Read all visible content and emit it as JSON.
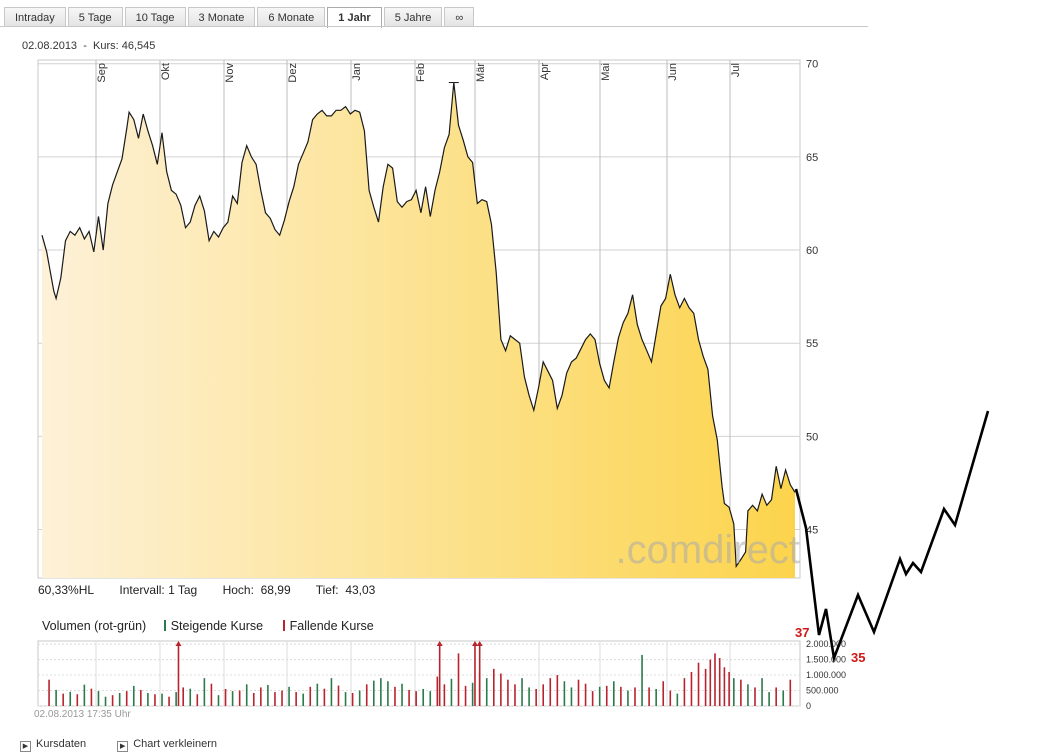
{
  "tabs": [
    "Intraday",
    "5 Tage",
    "10 Tage",
    "3 Monate",
    "6 Monate",
    "1 Jahr",
    "5 Jahre",
    "∞"
  ],
  "active_tab": 5,
  "header": {
    "date": "02.08.2013",
    "sep": "-",
    "kurs_label": "Kurs:",
    "kurs_value": "46,545"
  },
  "stats": {
    "hl": "60,33%HL",
    "intervall": "Intervall: 1 Tag",
    "hoch_label": "Hoch:",
    "hoch": "68,99",
    "tief_label": "Tief:",
    "tief": "43,03"
  },
  "volume_legend": {
    "title": "Volumen (rot-grün)",
    "up": "Steigende Kurse",
    "down": "Fallende Kurse"
  },
  "timestamp": "02.08.2013 17:35 Uhr",
  "bottom_links": [
    "Kursdaten",
    "Chart verkleinern"
  ],
  "watermark": ".comdirect",
  "annotations": {
    "high": "37",
    "low": "35"
  },
  "colors": {
    "up": "#2b7a4b",
    "down": "#b8232e",
    "line": "#1a1a1a",
    "fill_light": "#fdf1d8",
    "fill_dark": "#fcd44c",
    "drawn": "#000000",
    "annotation": "#d01818"
  },
  "chart_data": {
    "type": "area",
    "price": {
      "months": [
        "Sep",
        "Okt",
        "Nov",
        "Dez",
        "Jan",
        "Feb",
        "Mär",
        "Apr",
        "Mai",
        "Jun",
        "Jul"
      ],
      "yticks": [
        45,
        50,
        55,
        60,
        65,
        70
      ],
      "ylim": [
        42.4,
        70.2
      ],
      "points": [
        [
          0,
          60.8
        ],
        [
          2,
          59.9
        ],
        [
          5,
          57.8
        ],
        [
          6,
          57.4
        ],
        [
          8,
          58.5
        ],
        [
          10,
          60.5
        ],
        [
          12,
          61.0
        ],
        [
          14,
          60.8
        ],
        [
          16,
          61.2
        ],
        [
          18,
          60.6
        ],
        [
          20,
          61.0
        ],
        [
          22,
          59.9
        ],
        [
          24,
          61.8
        ],
        [
          26,
          60.0
        ],
        [
          28,
          62.5
        ],
        [
          30,
          63.5
        ],
        [
          32,
          64.2
        ],
        [
          34,
          64.9
        ],
        [
          36,
          66.5
        ],
        [
          37,
          67.4
        ],
        [
          39,
          67.0
        ],
        [
          41,
          66.0
        ],
        [
          43,
          67.3
        ],
        [
          45,
          66.4
        ],
        [
          47,
          65.6
        ],
        [
          49,
          64.6
        ],
        [
          51,
          66.3
        ],
        [
          53,
          64.2
        ],
        [
          55,
          63.2
        ],
        [
          57,
          63.0
        ],
        [
          59,
          62.4
        ],
        [
          61,
          61.2
        ],
        [
          63,
          61.5
        ],
        [
          65,
          62.4
        ],
        [
          67,
          62.9
        ],
        [
          69,
          62.1
        ],
        [
          71,
          60.5
        ],
        [
          73,
          61.0
        ],
        [
          75,
          60.7
        ],
        [
          77,
          61.2
        ],
        [
          79,
          61.5
        ],
        [
          81,
          62.9
        ],
        [
          83,
          62.5
        ],
        [
          85,
          64.7
        ],
        [
          87,
          65.6
        ],
        [
          89,
          65.0
        ],
        [
          91,
          64.6
        ],
        [
          93,
          63.2
        ],
        [
          95,
          62.0
        ],
        [
          97,
          61.7
        ],
        [
          99,
          61.1
        ],
        [
          101,
          60.8
        ],
        [
          103,
          61.6
        ],
        [
          105,
          62.6
        ],
        [
          107,
          63.4
        ],
        [
          109,
          64.6
        ],
        [
          111,
          65.2
        ],
        [
          113,
          65.8
        ],
        [
          115,
          67.0
        ],
        [
          117,
          67.3
        ],
        [
          119,
          67.5
        ],
        [
          121,
          67.2
        ],
        [
          123,
          67.2
        ],
        [
          125,
          67.5
        ],
        [
          127,
          67.5
        ],
        [
          129,
          67.7
        ],
        [
          131,
          67.3
        ],
        [
          133,
          67.5
        ],
        [
          135,
          67.4
        ],
        [
          137,
          66.4
        ],
        [
          139,
          63.2
        ],
        [
          141,
          62.3
        ],
        [
          143,
          61.5
        ],
        [
          145,
          63.4
        ],
        [
          147,
          64.6
        ],
        [
          149,
          64.4
        ],
        [
          151,
          62.6
        ],
        [
          153,
          62.3
        ],
        [
          155,
          62.6
        ],
        [
          157,
          62.7
        ],
        [
          159,
          63.2
        ],
        [
          161,
          62.0
        ],
        [
          163,
          63.4
        ],
        [
          165,
          61.8
        ],
        [
          167,
          63.2
        ],
        [
          169,
          64.2
        ],
        [
          171,
          65.5
        ],
        [
          173,
          66.2
        ],
        [
          175,
          68.99
        ],
        [
          177,
          66.7
        ],
        [
          179,
          65.9
        ],
        [
          181,
          65.0
        ],
        [
          183,
          64.7
        ],
        [
          185,
          62.5
        ],
        [
          187,
          62.7
        ],
        [
          189,
          62.6
        ],
        [
          191,
          61.4
        ],
        [
          193,
          58.8
        ],
        [
          195,
          55.2
        ],
        [
          197,
          54.6
        ],
        [
          199,
          55.4
        ],
        [
          201,
          55.2
        ],
        [
          203,
          55.0
        ],
        [
          205,
          53.2
        ],
        [
          207,
          52.2
        ],
        [
          209,
          51.4
        ],
        [
          211,
          52.6
        ],
        [
          213,
          54.0
        ],
        [
          215,
          53.5
        ],
        [
          217,
          53.0
        ],
        [
          219,
          51.5
        ],
        [
          221,
          52.2
        ],
        [
          223,
          53.4
        ],
        [
          225,
          54.0
        ],
        [
          227,
          54.2
        ],
        [
          229,
          54.7
        ],
        [
          231,
          55.2
        ],
        [
          233,
          55.5
        ],
        [
          235,
          55.2
        ],
        [
          237,
          53.9
        ],
        [
          239,
          53.0
        ],
        [
          241,
          52.6
        ],
        [
          243,
          54.0
        ],
        [
          245,
          55.3
        ],
        [
          247,
          56.1
        ],
        [
          249,
          56.6
        ],
        [
          251,
          57.6
        ],
        [
          253,
          56.0
        ],
        [
          255,
          55.2
        ],
        [
          257,
          54.6
        ],
        [
          259,
          54.0
        ],
        [
          261,
          55.5
        ],
        [
          263,
          57.0
        ],
        [
          265,
          57.4
        ],
        [
          267,
          58.7
        ],
        [
          269,
          57.6
        ],
        [
          271,
          56.9
        ],
        [
          273,
          57.4
        ],
        [
          275,
          56.9
        ],
        [
          277,
          56.6
        ],
        [
          279,
          55.2
        ],
        [
          281,
          54.3
        ],
        [
          283,
          53.6
        ],
        [
          285,
          51.1
        ],
        [
          287,
          49.8
        ],
        [
          289,
          47.3
        ],
        [
          290,
          46.4
        ],
        [
          292,
          46.2
        ],
        [
          294,
          45.3
        ],
        [
          295,
          43.03
        ],
        [
          297,
          43.4
        ],
        [
          299,
          43.8
        ],
        [
          300,
          46.0
        ],
        [
          302,
          46.3
        ],
        [
          304,
          46.0
        ],
        [
          306,
          46.9
        ],
        [
          308,
          46.3
        ],
        [
          310,
          46.6
        ],
        [
          312,
          48.4
        ],
        [
          314,
          47.2
        ],
        [
          316,
          48.2
        ],
        [
          318,
          47.4
        ],
        [
          320,
          47.0
        ]
      ]
    },
    "volume": {
      "yticks": [
        0,
        500000,
        1000000,
        1500000,
        2000000
      ],
      "ytick_labels": [
        "0",
        "500.000",
        "1.000.000",
        "1.500.000",
        "2.000.000"
      ],
      "ylim": [
        0,
        2100000
      ],
      "bars": [
        [
          3,
          850000,
          "d"
        ],
        [
          6,
          520000,
          "u"
        ],
        [
          9,
          400000,
          "d"
        ],
        [
          12,
          460000,
          "u"
        ],
        [
          15,
          380000,
          "d"
        ],
        [
          18,
          690000,
          "u"
        ],
        [
          21,
          560000,
          "d"
        ],
        [
          24,
          480000,
          "u"
        ],
        [
          27,
          300000,
          "u"
        ],
        [
          30,
          350000,
          "d"
        ],
        [
          33,
          420000,
          "u"
        ],
        [
          36,
          480000,
          "d"
        ],
        [
          39,
          650000,
          "u"
        ],
        [
          42,
          520000,
          "d"
        ],
        [
          45,
          420000,
          "u"
        ],
        [
          48,
          380000,
          "d"
        ],
        [
          51,
          400000,
          "u"
        ],
        [
          54,
          300000,
          "d"
        ],
        [
          57,
          450000,
          "u"
        ],
        [
          60,
          600000,
          "d"
        ],
        [
          63,
          560000,
          "u"
        ],
        [
          66,
          380000,
          "d"
        ],
        [
          69,
          900000,
          "u"
        ],
        [
          72,
          720000,
          "d"
        ],
        [
          75,
          350000,
          "u"
        ],
        [
          78,
          550000,
          "d"
        ],
        [
          81,
          480000,
          "u"
        ],
        [
          84,
          500000,
          "d"
        ],
        [
          87,
          700000,
          "u"
        ],
        [
          90,
          420000,
          "d"
        ],
        [
          93,
          600000,
          "d"
        ],
        [
          96,
          680000,
          "u"
        ],
        [
          99,
          450000,
          "d"
        ],
        [
          102,
          500000,
          "d"
        ],
        [
          105,
          620000,
          "u"
        ],
        [
          108,
          450000,
          "d"
        ],
        [
          111,
          400000,
          "u"
        ],
        [
          114,
          620000,
          "d"
        ],
        [
          117,
          720000,
          "u"
        ],
        [
          120,
          560000,
          "d"
        ],
        [
          123,
          900000,
          "u"
        ],
        [
          126,
          660000,
          "d"
        ],
        [
          129,
          450000,
          "u"
        ],
        [
          132,
          420000,
          "d"
        ],
        [
          135,
          500000,
          "u"
        ],
        [
          138,
          700000,
          "d"
        ],
        [
          141,
          820000,
          "u"
        ],
        [
          144,
          900000,
          "u"
        ],
        [
          147,
          800000,
          "u"
        ],
        [
          150,
          620000,
          "d"
        ],
        [
          153,
          720000,
          "u"
        ],
        [
          156,
          520000,
          "d"
        ],
        [
          159,
          480000,
          "d"
        ],
        [
          162,
          550000,
          "u"
        ],
        [
          165,
          480000,
          "u"
        ],
        [
          168,
          950000,
          "d"
        ],
        [
          171,
          700000,
          "d"
        ],
        [
          174,
          880000,
          "u"
        ],
        [
          177,
          1700000,
          "d"
        ],
        [
          180,
          650000,
          "d"
        ],
        [
          183,
          750000,
          "u"
        ],
        [
          186,
          1100000,
          "d"
        ],
        [
          189,
          900000,
          "u"
        ],
        [
          192,
          1200000,
          "d"
        ],
        [
          195,
          1050000,
          "d"
        ],
        [
          198,
          850000,
          "d"
        ],
        [
          201,
          700000,
          "d"
        ],
        [
          204,
          900000,
          "u"
        ],
        [
          207,
          600000,
          "u"
        ],
        [
          210,
          550000,
          "d"
        ],
        [
          213,
          700000,
          "d"
        ],
        [
          216,
          900000,
          "d"
        ],
        [
          219,
          1000000,
          "d"
        ],
        [
          222,
          800000,
          "u"
        ],
        [
          225,
          600000,
          "u"
        ],
        [
          228,
          850000,
          "d"
        ],
        [
          231,
          720000,
          "d"
        ],
        [
          234,
          480000,
          "d"
        ],
        [
          237,
          620000,
          "u"
        ],
        [
          240,
          650000,
          "d"
        ],
        [
          243,
          800000,
          "u"
        ],
        [
          246,
          620000,
          "d"
        ],
        [
          249,
          500000,
          "u"
        ],
        [
          252,
          600000,
          "d"
        ],
        [
          255,
          1650000,
          "u"
        ],
        [
          258,
          600000,
          "d"
        ],
        [
          261,
          550000,
          "u"
        ],
        [
          264,
          800000,
          "d"
        ],
        [
          267,
          500000,
          "d"
        ],
        [
          270,
          400000,
          "u"
        ],
        [
          273,
          900000,
          "d"
        ],
        [
          276,
          1100000,
          "d"
        ],
        [
          279,
          1400000,
          "d"
        ],
        [
          282,
          1200000,
          "d"
        ],
        [
          284,
          1500000,
          "d"
        ],
        [
          286,
          1700000,
          "d"
        ],
        [
          288,
          1550000,
          "d"
        ],
        [
          290,
          1250000,
          "d"
        ],
        [
          292,
          1100000,
          "d"
        ],
        [
          294,
          900000,
          "u"
        ],
        [
          297,
          850000,
          "d"
        ],
        [
          300,
          700000,
          "u"
        ],
        [
          303,
          600000,
          "d"
        ],
        [
          306,
          900000,
          "u"
        ],
        [
          309,
          450000,
          "u"
        ],
        [
          312,
          600000,
          "d"
        ],
        [
          315,
          500000,
          "u"
        ],
        [
          318,
          850000,
          "d"
        ]
      ],
      "spikes": [
        58,
        169,
        184,
        186
      ]
    }
  }
}
